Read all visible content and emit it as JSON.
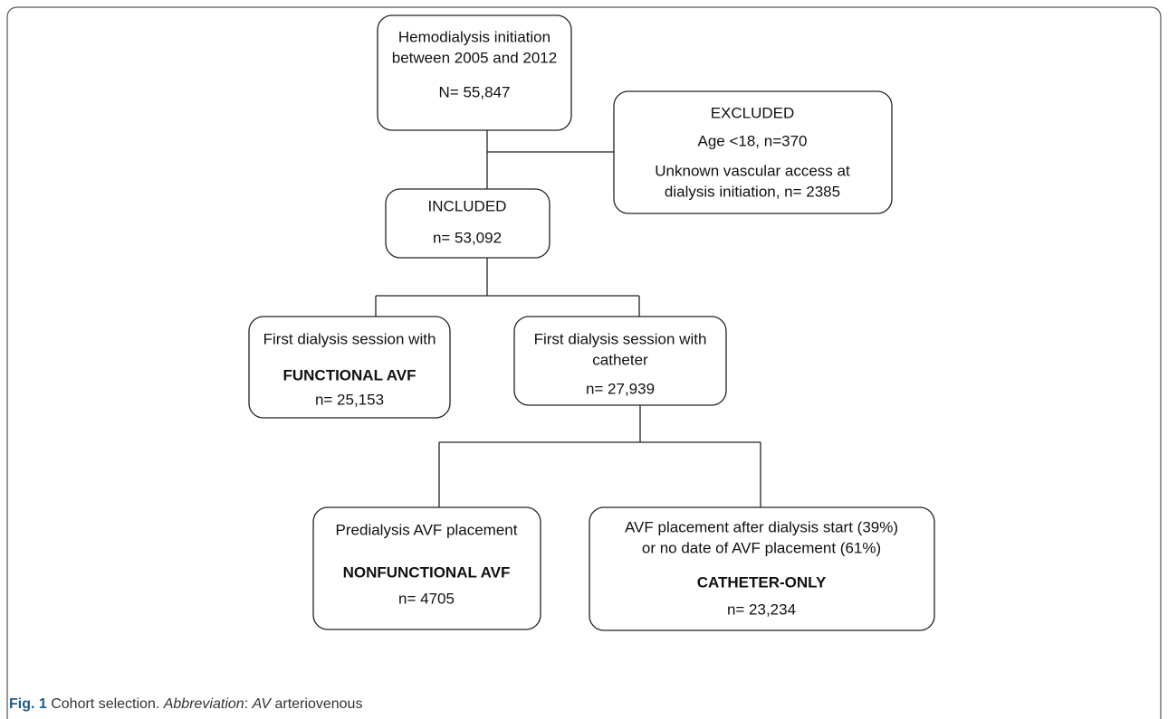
{
  "nodes": [
    {
      "lines": [
        "Hemodialysis initiation",
        "between 2005 and 2012",
        "N= 55,847"
      ]
    },
    {
      "lines": [
        "EXCLUDED",
        "Age <18, n=370",
        "Unknown vascular access at",
        "dialysis initiation, n= 2385"
      ]
    },
    {
      "lines": [
        "INCLUDED",
        "n= 53,092"
      ]
    },
    {
      "lines": [
        "First dialysis session with",
        "FUNCTIONAL AVF",
        "n= 25,153"
      ]
    },
    {
      "lines": [
        "First dialysis session with",
        "catheter",
        "n= 27,939"
      ]
    },
    {
      "lines": [
        "Predialysis AVF placement",
        "NONFUNCTIONAL AVF",
        "n= 4705"
      ]
    },
    {
      "lines": [
        "AVF placement after dialysis start (39%)",
        "or no date of AVF placement (61%)",
        "CATHETER-ONLY",
        "n= 23,234"
      ]
    }
  ],
  "caption": {
    "label": "Fig. 1",
    "text": " Cohort selection. ",
    "abbreviation_label": "Abbreviation",
    "abbreviation_sep": ": ",
    "term": "AV",
    "definition": " arteriovenous"
  }
}
